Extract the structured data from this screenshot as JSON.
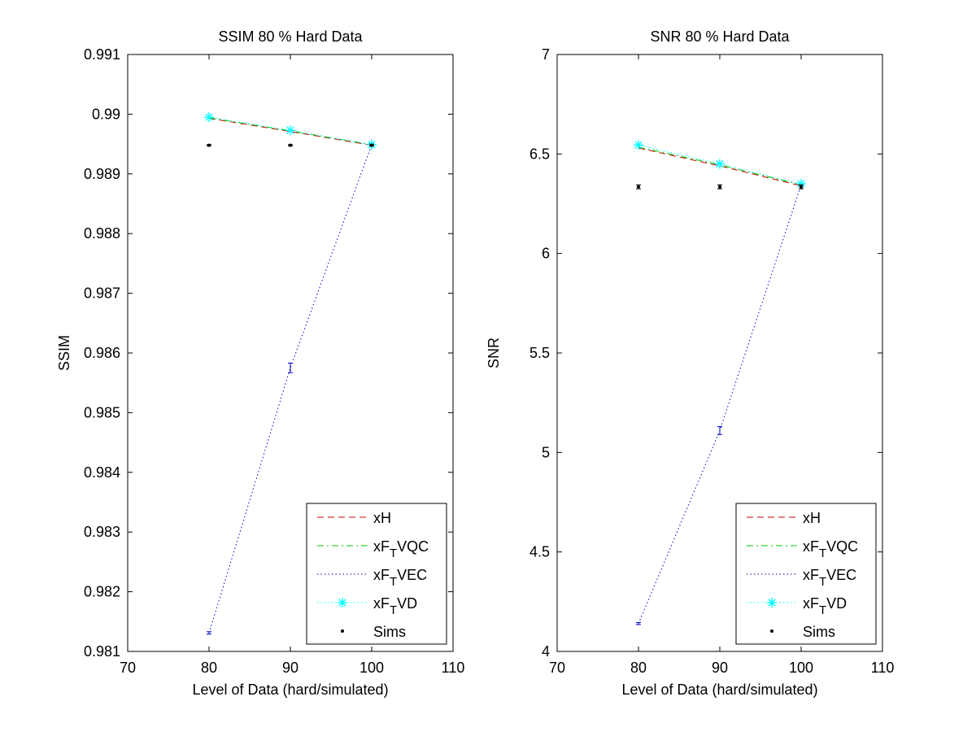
{
  "figure": {
    "background": "#ffffff"
  },
  "chart_data": [
    {
      "type": "line",
      "title": "SSIM 80 % Hard Data",
      "xlabel": "Level of Data (hard/simulated)",
      "ylabel": "SSIM",
      "xlim": [
        70,
        110
      ],
      "ylim": [
        0.981,
        0.991
      ],
      "xticks": [
        70,
        80,
        90,
        100,
        110
      ],
      "yticks": [
        0.981,
        0.982,
        0.983,
        0.984,
        0.985,
        0.986,
        0.987,
        0.988,
        0.989,
        0.99,
        0.991
      ],
      "ytick_labels": [
        "0.981",
        "0.982",
        "0.983",
        "0.984",
        "0.985",
        "0.986",
        "0.987",
        "0.988",
        "0.989",
        "0.99",
        "0.991"
      ],
      "x": [
        80,
        90,
        100
      ],
      "grid": false,
      "legend_position": "bottom-right",
      "series": [
        {
          "name": "xH",
          "sub": "",
          "name_suffix": "",
          "values": [
            0.98993,
            0.98971,
            0.98948
          ],
          "color": "#cc0000",
          "style": "dashed",
          "marker": "none"
        },
        {
          "name": "xF",
          "sub": "T",
          "name_suffix": "VQC",
          "values": [
            0.98994,
            0.98972,
            0.98949
          ],
          "color": "#00cc00",
          "style": "dashdot",
          "marker": "none"
        },
        {
          "name": "xF",
          "sub": "T",
          "name_suffix": "VEC",
          "values": [
            0.98131,
            0.98575,
            0.98949
          ],
          "err": [
            2e-05,
            8e-05,
            2e-05
          ],
          "color": "#0000cc",
          "style": "dotted",
          "marker": "none"
        },
        {
          "name": "xF",
          "sub": "T",
          "name_suffix": "VD",
          "values": [
            0.98995,
            0.98973,
            0.98949
          ],
          "color": "#00ffff",
          "style": "dotted",
          "marker": "asterisk"
        },
        {
          "name": "Sims",
          "sub": "",
          "name_suffix": "",
          "values": [
            0.98948,
            0.98948,
            0.98948
          ],
          "err": [
            1e-05,
            1e-05,
            1e-05
          ],
          "color": "#000000",
          "style": "none",
          "marker": "dot"
        }
      ]
    },
    {
      "type": "line",
      "title": "SNR 80 % Hard Data",
      "xlabel": "Level of Data (hard/simulated)",
      "ylabel": "SNR",
      "xlim": [
        70,
        110
      ],
      "ylim": [
        4,
        7
      ],
      "xticks": [
        70,
        80,
        90,
        100,
        110
      ],
      "yticks": [
        4,
        4.5,
        5,
        5.5,
        6,
        6.5,
        7
      ],
      "ytick_labels": [
        "4",
        "4.5",
        "5",
        "5.5",
        "6",
        "6.5",
        "7"
      ],
      "x": [
        80,
        90,
        100
      ],
      "grid": false,
      "legend_position": "bottom-right",
      "series": [
        {
          "name": "xH",
          "sub": "",
          "name_suffix": "",
          "values": [
            6.53,
            6.44,
            6.34
          ],
          "color": "#cc0000",
          "style": "dashed",
          "marker": "none"
        },
        {
          "name": "xF",
          "sub": "T",
          "name_suffix": "VQC",
          "values": [
            6.535,
            6.445,
            6.345
          ],
          "color": "#00cc00",
          "style": "dashdot",
          "marker": "none"
        },
        {
          "name": "xF",
          "sub": "T",
          "name_suffix": "VEC",
          "values": [
            4.14,
            5.11,
            6.345
          ],
          "err": [
            0.005,
            0.02,
            0.005
          ],
          "color": "#0000cc",
          "style": "dotted",
          "marker": "none"
        },
        {
          "name": "xF",
          "sub": "T",
          "name_suffix": "VD",
          "values": [
            6.545,
            6.45,
            6.35
          ],
          "color": "#00ffff",
          "style": "dotted",
          "marker": "asterisk"
        },
        {
          "name": "Sims",
          "sub": "",
          "name_suffix": "",
          "values": [
            6.335,
            6.335,
            6.335
          ],
          "err": [
            0.01,
            0.01,
            0.01
          ],
          "color": "#000000",
          "style": "none",
          "marker": "dot"
        }
      ]
    }
  ]
}
